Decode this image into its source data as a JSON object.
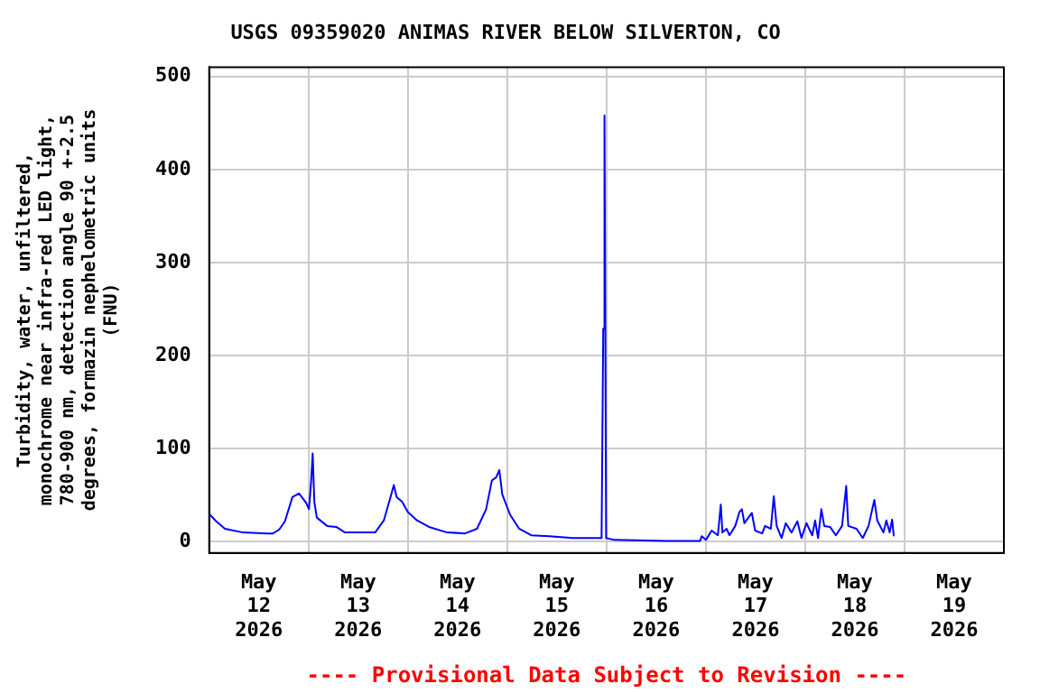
{
  "chart_data": {
    "type": "line",
    "title": "USGS 09359020 ANIMAS RIVER BELOW SILVERTON, CO",
    "ylabel": "Turbidity, water, unfiltered, monochrome near infra-red LED light, 780-900 nm, detection angle 90 +-2.5 degrees, formazin nephelometric units (FNU)",
    "annotations": [
      "---- Provisional Data Subject to Revision ----"
    ],
    "series": [
      {
        "color": "#0000ff",
        "x": [
          "2026-05-12T00:00",
          "2026-05-12T01:42",
          "2026-05-12T03:48",
          "2026-05-12T08:12",
          "2026-05-12T14:00",
          "2026-05-12T15:24",
          "2026-05-12T16:54",
          "2026-05-12T18:18",
          "2026-05-12T20:06",
          "2026-05-12T21:42",
          "2026-05-12T23:24",
          "2026-05-13T00:06",
          "2026-05-13T00:36",
          "2026-05-13T01:00",
          "2026-05-13T01:24",
          "2026-05-13T02:00",
          "2026-05-13T04:30",
          "2026-05-13T06:42",
          "2026-05-13T08:48",
          "2026-05-13T14:36",
          "2026-05-13T16:06",
          "2026-05-13T18:12",
          "2026-05-13T19:48",
          "2026-05-13T20:36",
          "2026-05-13T21:18",
          "2026-05-13T22:36",
          "2026-05-14T00:00",
          "2026-05-14T02:12",
          "2026-05-14T05:06",
          "2026-05-14T09:30",
          "2026-05-14T13:48",
          "2026-05-14T16:42",
          "2026-05-14T18:54",
          "2026-05-14T20:18",
          "2026-05-14T21:18",
          "2026-05-14T22:06",
          "2026-05-14T22:48",
          "2026-05-15T00:42",
          "2026-05-15T02:54",
          "2026-05-15T05:48",
          "2026-05-15T10:06",
          "2026-05-15T15:54",
          "2026-05-15T22:48",
          "2026-05-15T23:12",
          "2026-05-15T23:30",
          "2026-05-15T23:54",
          "2026-05-16T01:54",
          "2026-05-16T14:42",
          "2026-05-16T22:36",
          "2026-05-16T23:00",
          "2026-05-17T00:00",
          "2026-05-17T01:24",
          "2026-05-17T02:54",
          "2026-05-17T03:36",
          "2026-05-17T04:00",
          "2026-05-17T05:00",
          "2026-05-17T05:42",
          "2026-05-17T07:06",
          "2026-05-17T08:06",
          "2026-05-17T08:42",
          "2026-05-17T09:18",
          "2026-05-17T11:06",
          "2026-05-17T11:54",
          "2026-05-17T13:36",
          "2026-05-17T14:18",
          "2026-05-17T15:42",
          "2026-05-17T16:24",
          "2026-05-17T17:06",
          "2026-05-17T18:18",
          "2026-05-17T19:18",
          "2026-05-17T20:42",
          "2026-05-17T22:06",
          "2026-05-17T23:06",
          "2026-05-18T00:18",
          "2026-05-18T01:42",
          "2026-05-18T02:24",
          "2026-05-18T03:06",
          "2026-05-18T03:54",
          "2026-05-18T04:36",
          "2026-05-18T06:00",
          "2026-05-18T07:24",
          "2026-05-18T08:54",
          "2026-05-18T09:54",
          "2026-05-18T10:24",
          "2026-05-18T12:24",
          "2026-05-18T13:54",
          "2026-05-18T15:18",
          "2026-05-18T16:42",
          "2026-05-18T17:24",
          "2026-05-18T18:54",
          "2026-05-18T19:36",
          "2026-05-18T20:24",
          "2026-05-18T21:00",
          "2026-05-18T21:24"
        ],
        "values": [
          30,
          22,
          14,
          10,
          9,
          9,
          13,
          22,
          48,
          52,
          42,
          35,
          63,
          95,
          43,
          26,
          17,
          16,
          10,
          10,
          10,
          23,
          48,
          61,
          48,
          43,
          32,
          23,
          16,
          10,
          9,
          14,
          35,
          66,
          69,
          77,
          51,
          29,
          14,
          7,
          6,
          4,
          4,
          229,
          458,
          4,
          2,
          1,
          1,
          6,
          2,
          12,
          7,
          40,
          10,
          14,
          7,
          17,
          32,
          35,
          20,
          31,
          12,
          9,
          17,
          14,
          49,
          17,
          4,
          20,
          10,
          22,
          4,
          20,
          7,
          23,
          4,
          35,
          17,
          16,
          7,
          17,
          60,
          17,
          14,
          4,
          17,
          45,
          23,
          10,
          23,
          10,
          24,
          6
        ]
      }
    ],
    "xlim": [
      "2026-05-12T00:00",
      "2026-05-20T00:00"
    ],
    "xticks": [
      {
        "value": "2026-05-12T12:00",
        "label": "May\n12\n2026"
      },
      {
        "value": "2026-05-13T00:00",
        "label": null
      },
      {
        "value": "2026-05-13T12:00",
        "label": "May\n13\n2026"
      },
      {
        "value": "2026-05-14T00:00",
        "label": null
      },
      {
        "value": "2026-05-14T12:00",
        "label": "May\n14\n2026"
      },
      {
        "value": "2026-05-15T00:00",
        "label": null
      },
      {
        "value": "2026-05-15T12:00",
        "label": "May\n15\n2026"
      },
      {
        "value": "2026-05-16T00:00",
        "label": null
      },
      {
        "value": "2026-05-16T12:00",
        "label": "May\n16\n2026"
      },
      {
        "value": "2026-05-17T00:00",
        "label": null
      },
      {
        "value": "2026-05-17T12:00",
        "label": "May\n17\n2026"
      },
      {
        "value": "2026-05-18T00:00",
        "label": null
      },
      {
        "value": "2026-05-18T12:00",
        "label": "May\n18\n2026"
      },
      {
        "value": "2026-05-19T00:00",
        "label": null
      },
      {
        "value": "2026-05-19T12:00",
        "label": "May\n19\n2026"
      }
    ],
    "ylim": [
      -12,
      510
    ],
    "yticks": [
      0,
      100,
      200,
      300,
      400,
      500
    ],
    "grid": true,
    "marker": "none",
    "line_style": "solid"
  }
}
